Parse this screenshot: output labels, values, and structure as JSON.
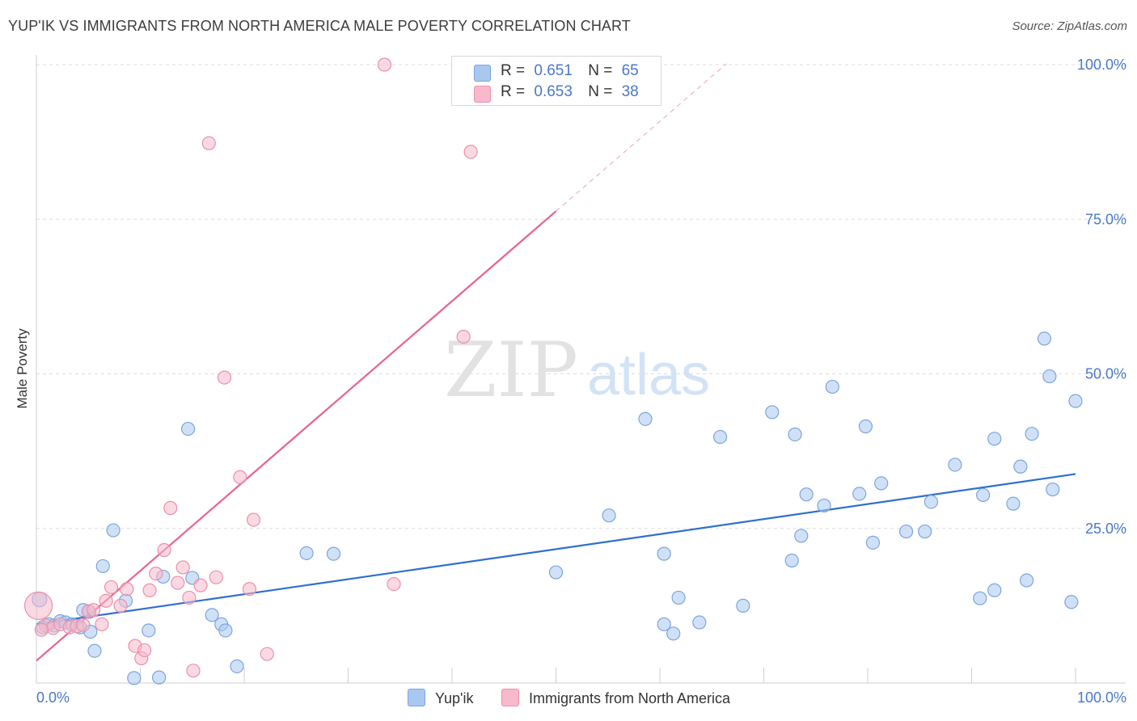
{
  "title": "YUP'IK VS IMMIGRANTS FROM NORTH AMERICA MALE POVERTY CORRELATION CHART",
  "source": "Source: ZipAtlas.com",
  "watermark": {
    "zip": "ZIP",
    "atlas": "atlas"
  },
  "legend": {
    "rows": [
      {
        "r_label": "R =",
        "r_value": "0.651",
        "n_label": "N =",
        "n_value": "65",
        "color": "#a9c8f0"
      },
      {
        "r_label": "R =",
        "r_value": "0.653",
        "n_label": "N =",
        "n_value": "38",
        "color": "#f7b9cb"
      }
    ]
  },
  "colors": {
    "blue_fill": "#a9c8f0",
    "blue_stroke": "#7aa5dd",
    "blue_line": "#2f6fd0",
    "pink_fill": "#f7b9cb",
    "pink_stroke": "#ec8fab",
    "pink_line": "#e8638f",
    "tick_label": "#4a78c8",
    "grid": "#dddddd"
  },
  "chart_data": {
    "type": "scatter",
    "xlabel": "",
    "ylabel": "Male Poverty",
    "xlim": [
      0,
      100
    ],
    "ylim": [
      0,
      100
    ],
    "x_tick_labels": [
      "0.0%",
      "100.0%"
    ],
    "y_ticks": [
      25,
      50,
      75,
      100
    ],
    "y_tick_labels": [
      "25.0%",
      "50.0%",
      "75.0%",
      "100.0%"
    ],
    "grid": true,
    "legend_position": "top-center",
    "series": [
      {
        "name": "Yup'ik",
        "color": "#a9c8f0",
        "points": [
          [
            0.3,
            13.5
          ],
          [
            0.6,
            9
          ],
          [
            1.2,
            9.5
          ],
          [
            1.7,
            9.3
          ],
          [
            2.3,
            10
          ],
          [
            2.8,
            9.8
          ],
          [
            3.4,
            9.5
          ],
          [
            4.2,
            9
          ],
          [
            5.1,
            11.5
          ],
          [
            4.5,
            11.8
          ],
          [
            5.2,
            8.3
          ],
          [
            5.6,
            5.2
          ],
          [
            6.4,
            18.9
          ],
          [
            7.4,
            24.7
          ],
          [
            8.6,
            13.3
          ],
          [
            9.4,
            0.8
          ],
          [
            10.8,
            8.5
          ],
          [
            11.8,
            0.9
          ],
          [
            12.2,
            17.2
          ],
          [
            14.6,
            41.1
          ],
          [
            15.0,
            17.0
          ],
          [
            16.9,
            11.0
          ],
          [
            17.8,
            9.5
          ],
          [
            18.2,
            8.5
          ],
          [
            19.3,
            2.7
          ],
          [
            26.0,
            21.0
          ],
          [
            28.6,
            20.9
          ],
          [
            50.0,
            17.9
          ],
          [
            55.1,
            27.1
          ],
          [
            58.6,
            42.7
          ],
          [
            60.4,
            9.5
          ],
          [
            60.4,
            20.9
          ],
          [
            61.3,
            8.0
          ],
          [
            61.8,
            13.8
          ],
          [
            63.8,
            9.8
          ],
          [
            65.8,
            39.8
          ],
          [
            68.0,
            12.5
          ],
          [
            70.8,
            43.8
          ],
          [
            72.7,
            19.8
          ],
          [
            73.0,
            40.2
          ],
          [
            73.6,
            23.8
          ],
          [
            74.1,
            30.5
          ],
          [
            75.8,
            28.7
          ],
          [
            76.6,
            47.9
          ],
          [
            79.2,
            30.6
          ],
          [
            79.8,
            41.5
          ],
          [
            80.5,
            22.7
          ],
          [
            81.3,
            32.3
          ],
          [
            83.7,
            24.5
          ],
          [
            85.5,
            24.5
          ],
          [
            86.1,
            29.3
          ],
          [
            88.4,
            35.3
          ],
          [
            90.8,
            13.7
          ],
          [
            91.1,
            30.4
          ],
          [
            92.2,
            39.5
          ],
          [
            92.2,
            15.0
          ],
          [
            94.0,
            29.0
          ],
          [
            94.7,
            35.0
          ],
          [
            95.3,
            16.6
          ],
          [
            95.8,
            40.3
          ],
          [
            97.0,
            55.7
          ],
          [
            97.5,
            49.6
          ],
          [
            97.8,
            31.3
          ],
          [
            99.6,
            13.1
          ],
          [
            100.0,
            45.6
          ]
        ]
      },
      {
        "name": "Immigrants from North America",
        "color": "#f7b9cb",
        "points": [
          [
            0.2,
            12.5
          ],
          [
            0.9,
            9.3
          ],
          [
            1.6,
            8.9
          ],
          [
            2.3,
            9.5
          ],
          [
            3.2,
            9.0
          ],
          [
            3.9,
            9.2
          ],
          [
            4.5,
            9.4
          ],
          [
            5.0,
            11.6
          ],
          [
            5.5,
            11.8
          ],
          [
            6.3,
            9.5
          ],
          [
            6.7,
            13.3
          ],
          [
            7.2,
            15.5
          ],
          [
            8.1,
            12.5
          ],
          [
            8.7,
            15.2
          ],
          [
            9.5,
            6.0
          ],
          [
            10.1,
            4.0
          ],
          [
            10.4,
            5.3
          ],
          [
            10.9,
            15.0
          ],
          [
            11.5,
            17.7
          ],
          [
            12.3,
            21.5
          ],
          [
            12.9,
            28.3
          ],
          [
            13.6,
            16.2
          ],
          [
            14.1,
            18.7
          ],
          [
            14.7,
            13.8
          ],
          [
            15.1,
            2.0
          ],
          [
            15.8,
            15.8
          ],
          [
            16.6,
            87.3
          ],
          [
            17.3,
            17.1
          ],
          [
            18.1,
            49.4
          ],
          [
            19.6,
            33.3
          ],
          [
            20.5,
            15.2
          ],
          [
            20.9,
            26.4
          ],
          [
            22.2,
            4.7
          ],
          [
            33.5,
            100.0
          ],
          [
            34.4,
            16.0
          ],
          [
            41.1,
            56.0
          ],
          [
            41.8,
            85.9
          ],
          [
            0.5,
            8.6
          ]
        ]
      }
    ],
    "trend_lines": [
      {
        "series": "Yup'ik",
        "x": [
          0,
          100
        ],
        "y": [
          9.5,
          33.8
        ]
      },
      {
        "series": "Immigrants from North America",
        "x": [
          0,
          50
        ],
        "y": [
          3.6,
          76.3
        ],
        "dashed_extension_to_x": 66.4
      }
    ]
  },
  "bottom_legend": [
    {
      "label": "Yup'ik",
      "color": "#a9c8f0"
    },
    {
      "label": "Immigrants from North America",
      "color": "#f7b9cb"
    }
  ]
}
